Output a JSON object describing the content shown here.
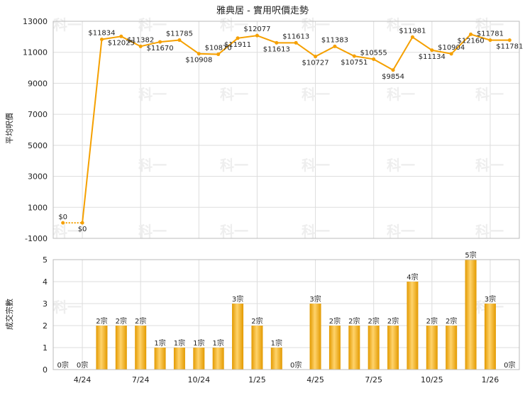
{
  "chart_data": [
    {
      "type": "line",
      "title": "雅典居 - 實用呎價走勢",
      "ylabel": "平均呎價",
      "ylim": [
        -1000,
        13000
      ],
      "yticks": [
        -1000,
        1000,
        3000,
        5000,
        7000,
        9000,
        11000,
        13000
      ],
      "grid": true,
      "watermark": "科一",
      "colors": {
        "line": "#f5a000",
        "zero_segment": "#f5a000"
      },
      "points": [
        {
          "x": 1,
          "y": 0,
          "label": "$0"
        },
        {
          "x": 2,
          "y": 0,
          "label": "$0"
        },
        {
          "x": 3,
          "y": 11834,
          "label": "$11834"
        },
        {
          "x": 4,
          "y": 12025,
          "label": "$12025"
        },
        {
          "x": 5,
          "y": 11382,
          "label": "$11382"
        },
        {
          "x": 6,
          "y": 11670,
          "label": "$11670"
        },
        {
          "x": 7,
          "y": 11785,
          "label": "$11785"
        },
        {
          "x": 8,
          "y": 10908,
          "label": "$10908"
        },
        {
          "x": 9,
          "y": 10870,
          "label": "$10870"
        },
        {
          "x": 10,
          "y": 11911,
          "label": "$11911"
        },
        {
          "x": 11,
          "y": 12077,
          "label": "$12077"
        },
        {
          "x": 12,
          "y": 11613,
          "label": "$11613"
        },
        {
          "x": 13,
          "y": 11613,
          "label": "$11613"
        },
        {
          "x": 14,
          "y": 10727,
          "label": "$10727"
        },
        {
          "x": 15,
          "y": 11383,
          "label": "$11383"
        },
        {
          "x": 16,
          "y": 10751,
          "label": "$10751"
        },
        {
          "x": 17,
          "y": 10555,
          "label": "$10555"
        },
        {
          "x": 18,
          "y": 9854,
          "label": "$9854"
        },
        {
          "x": 19,
          "y": 11981,
          "label": "$11981"
        },
        {
          "x": 20,
          "y": 11134,
          "label": "$11134"
        },
        {
          "x": 21,
          "y": 10904,
          "label": "$10904"
        },
        {
          "x": 22,
          "y": 12160,
          "label": "$12160"
        },
        {
          "x": 23,
          "y": 11781,
          "label": "$11781"
        },
        {
          "x": 24,
          "y": 11781,
          "label": "$11781"
        }
      ]
    },
    {
      "type": "bar",
      "ylabel": "成交宗數",
      "ylim": [
        0,
        5
      ],
      "yticks": [
        0,
        1,
        2,
        3,
        4,
        5
      ],
      "grid": true,
      "colors": {
        "bar_light": "#ffd36b",
        "bar_dark": "#e39a00"
      },
      "categories": [
        "",
        "4/24",
        "",
        "",
        "7/24",
        "",
        "",
        "10/24",
        "",
        "",
        "1/25",
        "",
        "",
        "4/25",
        "",
        "",
        "7/25",
        "",
        "",
        "10/25",
        "",
        "",
        "1/26",
        ""
      ],
      "x_tick_labels": [
        "4/24",
        "7/24",
        "10/24",
        "1/25",
        "4/25",
        "7/25",
        "10/25",
        "1/26"
      ],
      "values": [
        0,
        0,
        2,
        2,
        2,
        1,
        1,
        1,
        1,
        3,
        2,
        1,
        0,
        3,
        2,
        2,
        2,
        2,
        4,
        2,
        2,
        5,
        3,
        0
      ],
      "value_labels": [
        "0宗",
        "0宗",
        "2宗",
        "2宗",
        "2宗",
        "1宗",
        "1宗",
        "1宗",
        "1宗",
        "3宗",
        "2宗",
        "1宗",
        "0宗",
        "3宗",
        "2宗",
        "2宗",
        "2宗",
        "2宗",
        "4宗",
        "2宗",
        "2宗",
        "5宗",
        "3宗",
        "0宗"
      ]
    }
  ]
}
